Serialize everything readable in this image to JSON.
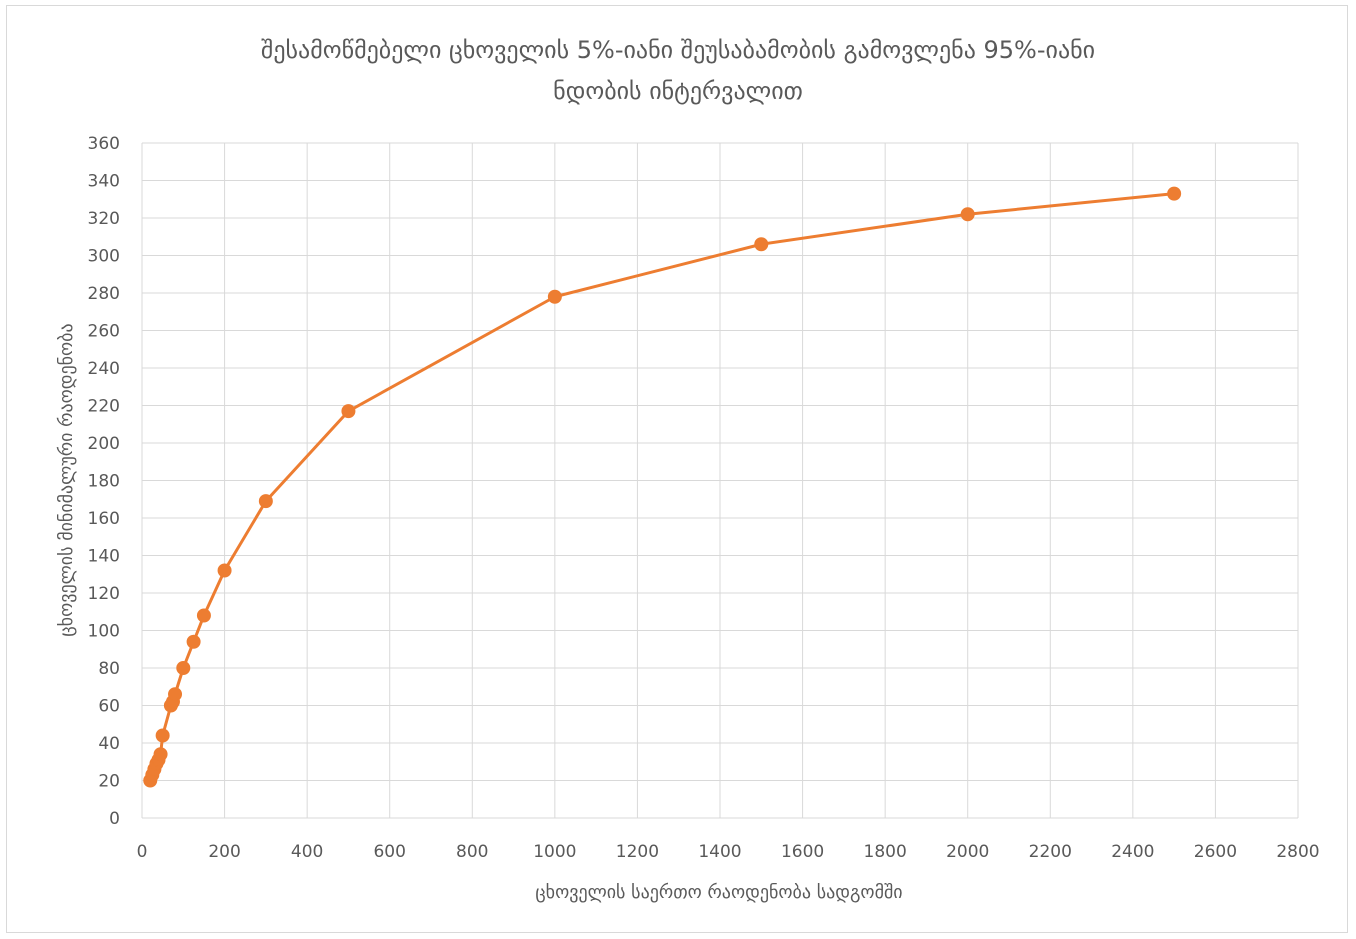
{
  "chart_data": {
    "type": "line",
    "title_lines": [
      "შესამოწმებელი ცხოველის 5%-იანი შეუსაბამობის გამოვლენა 95%-იანი",
      "ნდობის ინტერვალით"
    ],
    "xlabel": "ცხოველის საერთო რაოდენობა სადგომში",
    "ylabel": "ცხოველის მინიმალური რაოდენობა",
    "xlim": [
      0,
      2800
    ],
    "ylim": [
      0,
      360
    ],
    "xticks": [
      0,
      200,
      400,
      600,
      800,
      1000,
      1200,
      1400,
      1600,
      1800,
      2000,
      2200,
      2400,
      2600,
      2800
    ],
    "yticks": [
      0,
      20,
      40,
      60,
      80,
      100,
      120,
      140,
      160,
      180,
      200,
      220,
      240,
      260,
      280,
      300,
      320,
      340,
      360
    ],
    "grid": true,
    "series": [
      {
        "color": "#ed7d31",
        "marker": "circle",
        "points": [
          {
            "x": 20,
            "y": 20
          },
          {
            "x": 25,
            "y": 23
          },
          {
            "x": 30,
            "y": 26
          },
          {
            "x": 35,
            "y": 29
          },
          {
            "x": 40,
            "y": 31
          },
          {
            "x": 45,
            "y": 34
          },
          {
            "x": 50,
            "y": 44
          },
          {
            "x": 70,
            "y": 60
          },
          {
            "x": 75,
            "y": 62
          },
          {
            "x": 80,
            "y": 66
          },
          {
            "x": 100,
            "y": 80
          },
          {
            "x": 125,
            "y": 94
          },
          {
            "x": 150,
            "y": 108
          },
          {
            "x": 200,
            "y": 132
          },
          {
            "x": 300,
            "y": 169
          },
          {
            "x": 500,
            "y": 217
          },
          {
            "x": 1000,
            "y": 278
          },
          {
            "x": 1500,
            "y": 306
          },
          {
            "x": 2000,
            "y": 322
          },
          {
            "x": 2500,
            "y": 333
          }
        ]
      }
    ]
  }
}
